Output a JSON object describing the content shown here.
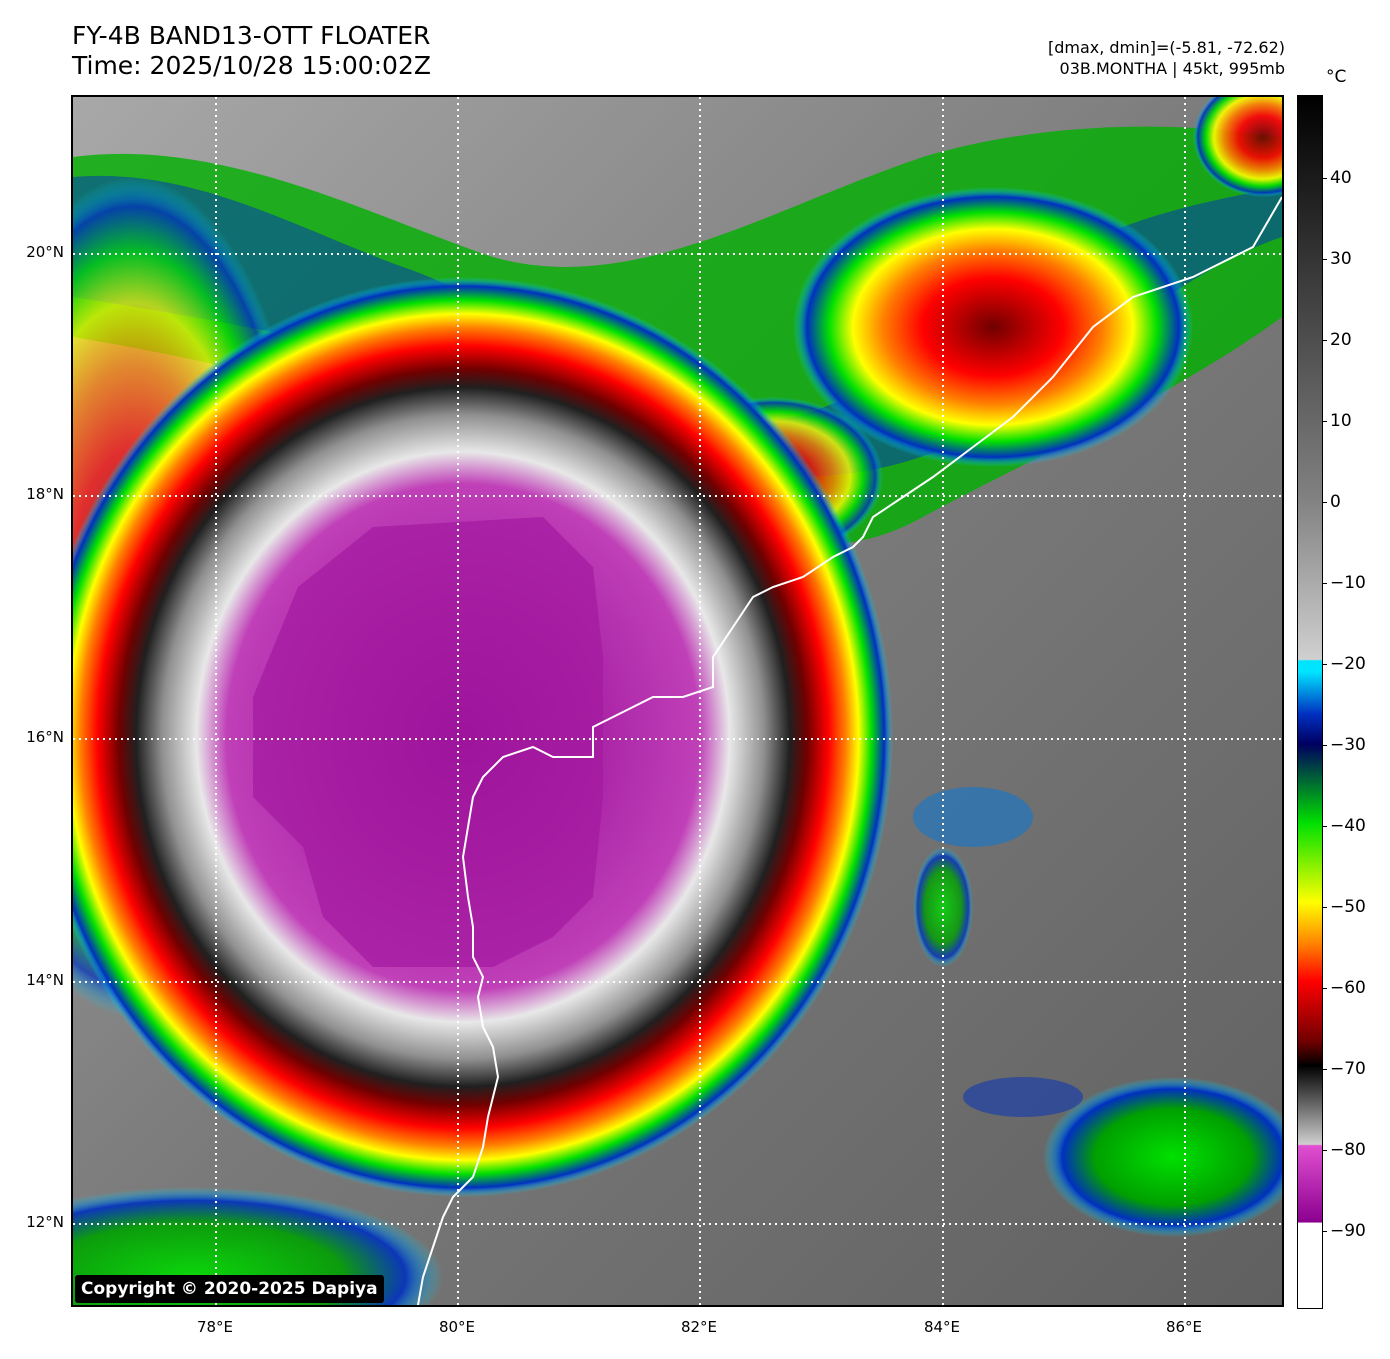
{
  "header": {
    "title_line1": "FY-4B BAND13-OTT FLOATER",
    "title_line2": "Time: 2025/10/28 15:00:02Z",
    "info_line1": "[dmax, dmin]=(-5.81, -72.62)",
    "info_line2": "03B.MONTHA | 45kt, 995mb"
  },
  "map": {
    "copyright": "Copyright © 2020-2025 Dapiya",
    "lat_labels": [
      "20°N",
      "18°N",
      "16°N",
      "14°N",
      "12°N"
    ],
    "lon_labels": [
      "78°E",
      "80°E",
      "82°E",
      "84°E",
      "86°E"
    ]
  },
  "colorbar": {
    "unit": "°C",
    "ticks": [
      "40",
      "30",
      "20",
      "10",
      "0",
      "−10",
      "−20",
      "−30",
      "−40",
      "−50",
      "−60",
      "−70",
      "−80",
      "−90"
    ],
    "colors": {
      "warm_top": "#000000",
      "gray_mid": "#808080",
      "light_gray": "#d0d0d0",
      "cyan": "#00e5ff",
      "blue": "#0030c0",
      "navy": "#000060",
      "green": "#00e000",
      "yellow": "#ffff00",
      "orange": "#ff8000",
      "red": "#ff0000",
      "dark_red": "#700000",
      "magenta": "#e050d0",
      "purple": "#8c0090",
      "white": "#ffffff"
    }
  }
}
